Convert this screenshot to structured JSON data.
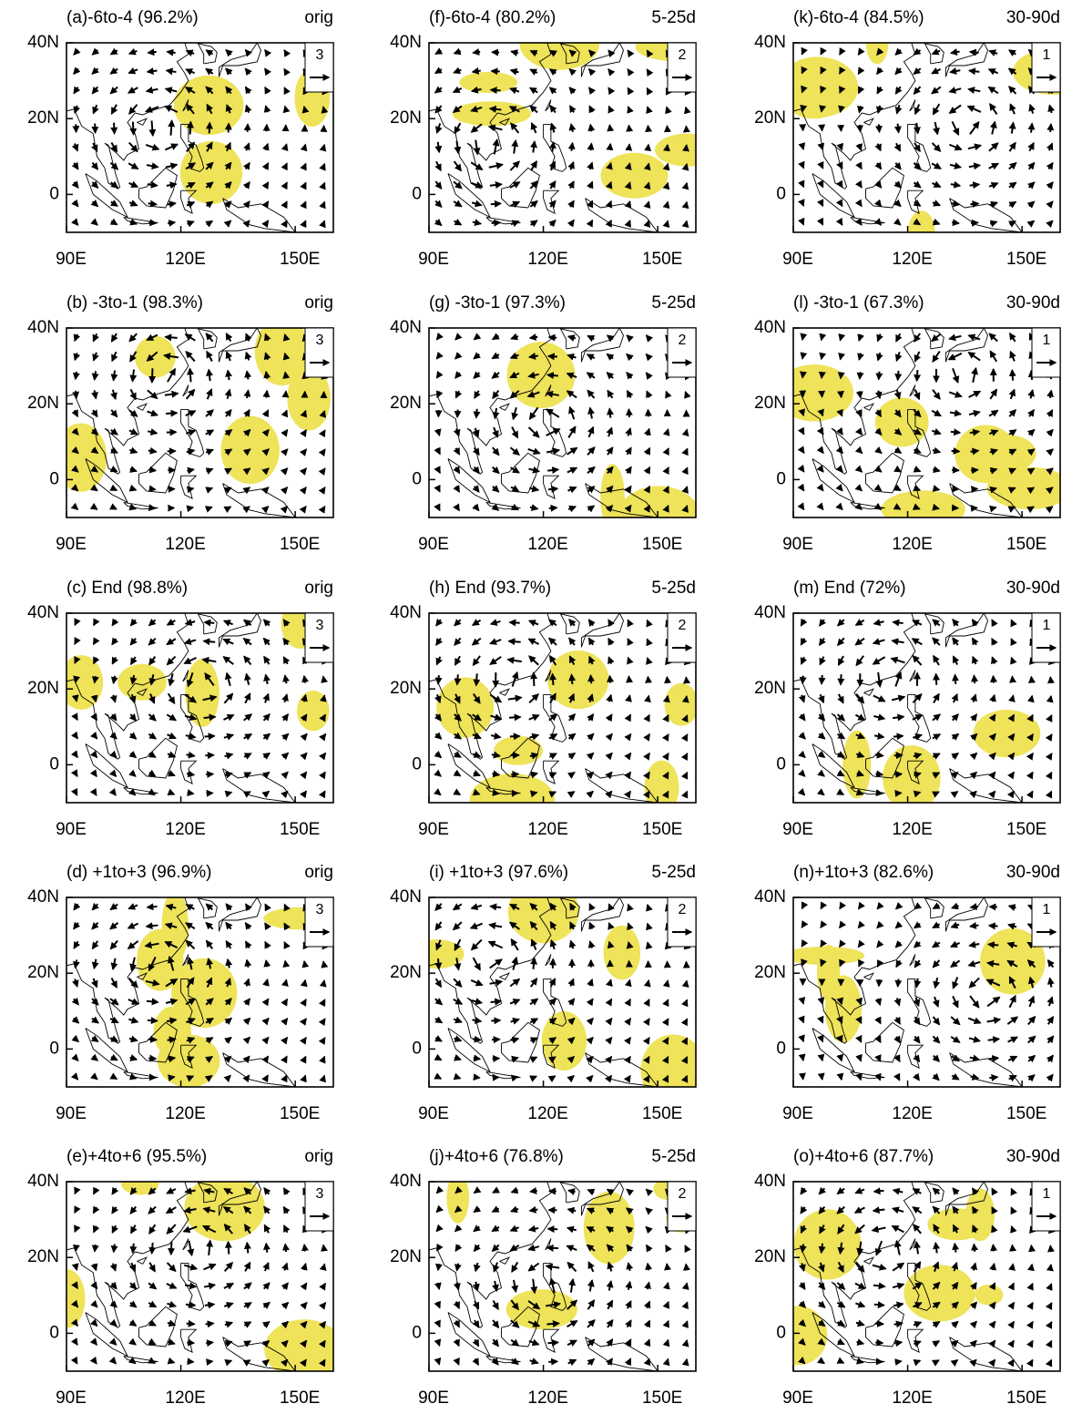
{
  "xlim": [
    90,
    160
  ],
  "ylim": [
    -10,
    40
  ],
  "xticks": [
    {
      "value": 90,
      "label": "90E"
    },
    {
      "value": 120,
      "label": "120E"
    },
    {
      "value": 150,
      "label": "150E"
    }
  ],
  "yticks": [
    {
      "value": 40,
      "label": "40N"
    },
    {
      "value": 20,
      "label": "20N"
    },
    0
  ],
  "columns": [
    {
      "filter": "orig",
      "ref_vector": 3,
      "panels": [
        "(a)-6to-4 (96.2%)",
        "(b) -3to-1 (98.3%)",
        "(c) End (98.8%)",
        "(d) +1to+3 (96.9%)",
        "(e)+4to+6 (95.5%)"
      ]
    },
    {
      "filter": "5-25d",
      "ref_vector": 2,
      "panels": [
        "(f)-6to-4 (80.2%)",
        "(g) -3to-1 (97.3%)",
        "(h) End (93.7%)",
        "(i) +1to+3 (97.6%)",
        "(j)+4to+6 (76.8%)"
      ]
    },
    {
      "filter": "30-90d",
      "ref_vector": 1,
      "panels": [
        "(k)-6to-4 (84.5%)",
        "(l) -3to-1 (67.3%)",
        "(m) End (72%)",
        "(n)+1to+3 (82.6%)",
        "(o)+4to+6 (87.7%)"
      ]
    }
  ]
}
